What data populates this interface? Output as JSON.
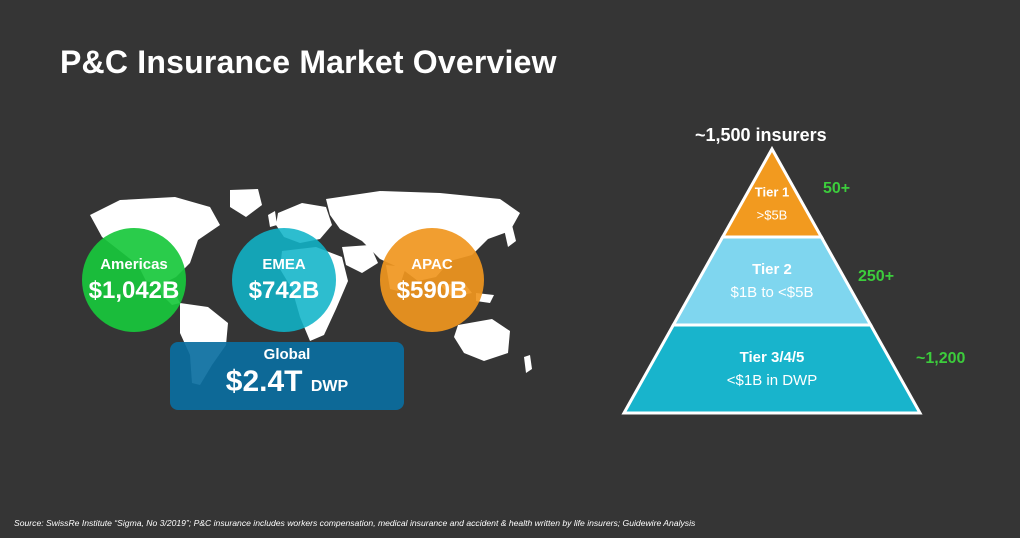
{
  "title": "P&C Insurance Market Overview",
  "regions": [
    {
      "name": "Americas",
      "value": "$1,042B",
      "color": "#18c83c"
    },
    {
      "name": "EMEA",
      "value": "$742B",
      "color": "#10b4c8"
    },
    {
      "name": "APAC",
      "value": "$590B",
      "color": "#f0961e"
    }
  ],
  "global": {
    "name": "Global",
    "value": "$2.4T",
    "unit": "DWP",
    "color": "#0a6ea0"
  },
  "pyramid": {
    "total": "~1,500 insurers",
    "tiers": [
      {
        "name": "Tier 1",
        "range": ">$5B",
        "count": "50+",
        "color": "#f29a1f"
      },
      {
        "name": "Tier 2",
        "range": "$1B to <$5B",
        "count": "250+",
        "color": "#7fd6ef"
      },
      {
        "name": "Tier 3/4/5",
        "range": "<$1B in DWP",
        "count": "~1,200",
        "color": "#18b4cc"
      }
    ]
  },
  "source": "Source: SwissRe Institute “Sigma, No 3/2019”; P&C insurance includes workers compensation, medical insurance and accident & health written by life insurers; Guidewire Analysis"
}
